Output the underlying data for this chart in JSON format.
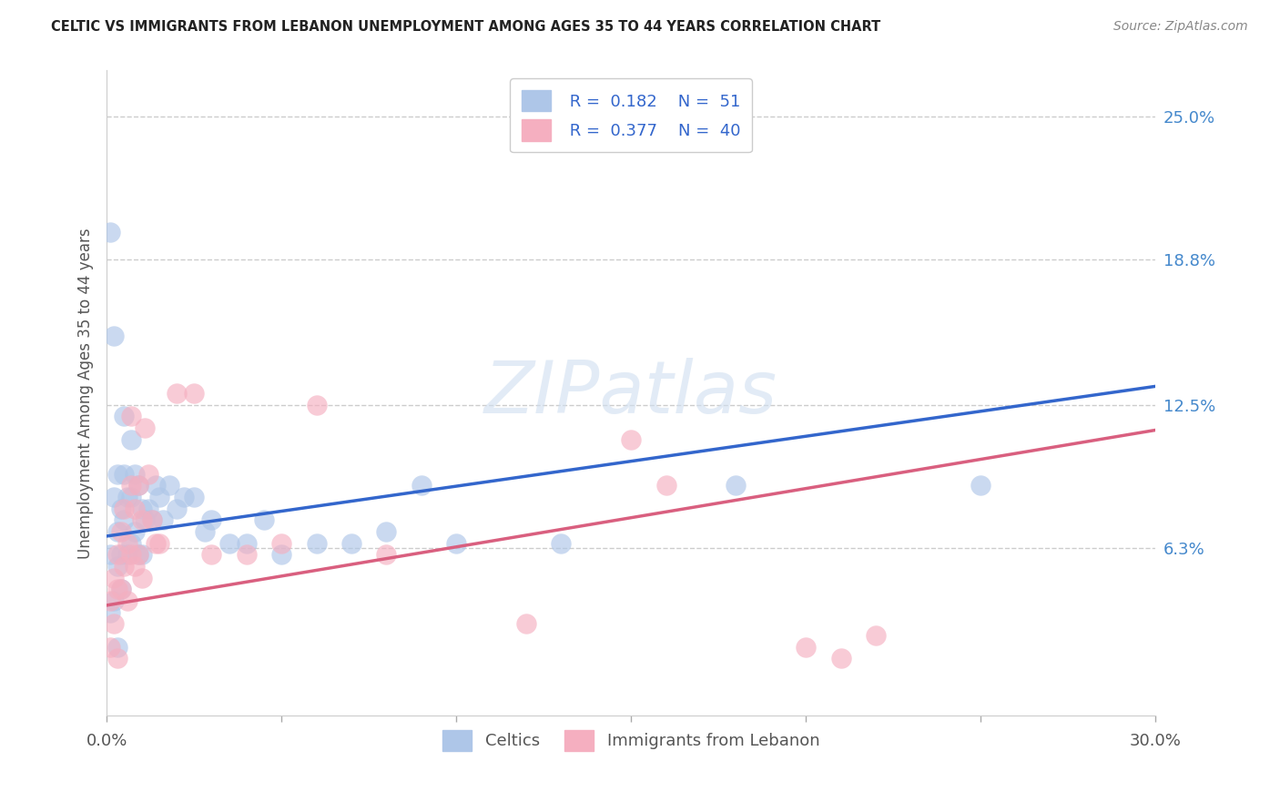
{
  "title": "CELTIC VS IMMIGRANTS FROM LEBANON UNEMPLOYMENT AMONG AGES 35 TO 44 YEARS CORRELATION CHART",
  "source": "Source: ZipAtlas.com",
  "ylabel": "Unemployment Among Ages 35 to 44 years",
  "xlim": [
    0.0,
    0.3
  ],
  "ylim": [
    -0.01,
    0.27
  ],
  "right_yticks": [
    0.063,
    0.125,
    0.188,
    0.25
  ],
  "right_yticklabels": [
    "6.3%",
    "12.5%",
    "18.8%",
    "25.0%"
  ],
  "legend_R_celtics": "0.182",
  "legend_N_celtics": "51",
  "legend_R_lebanon": "0.377",
  "legend_N_lebanon": "40",
  "celtics_color": "#aec6e8",
  "lebanon_color": "#f5afc0",
  "celtics_line_color": "#3366cc",
  "lebanon_line_color": "#d95f7f",
  "celtics_line_x0": 0.0,
  "celtics_line_y0": 0.068,
  "celtics_line_x1": 0.3,
  "celtics_line_y1": 0.133,
  "lebanon_line_x0": 0.0,
  "lebanon_line_y0": 0.038,
  "lebanon_line_x1": 0.3,
  "lebanon_line_y1": 0.114,
  "celtics_x": [
    0.001,
    0.001,
    0.001,
    0.002,
    0.002,
    0.002,
    0.003,
    0.003,
    0.003,
    0.003,
    0.004,
    0.004,
    0.004,
    0.005,
    0.005,
    0.005,
    0.006,
    0.006,
    0.007,
    0.007,
    0.007,
    0.008,
    0.008,
    0.009,
    0.009,
    0.01,
    0.01,
    0.011,
    0.012,
    0.013,
    0.014,
    0.015,
    0.016,
    0.018,
    0.02,
    0.022,
    0.025,
    0.028,
    0.03,
    0.035,
    0.04,
    0.045,
    0.05,
    0.06,
    0.07,
    0.08,
    0.09,
    0.1,
    0.13,
    0.18,
    0.25
  ],
  "celtics_y": [
    0.2,
    0.06,
    0.035,
    0.155,
    0.085,
    0.04,
    0.095,
    0.07,
    0.055,
    0.02,
    0.08,
    0.06,
    0.045,
    0.12,
    0.095,
    0.075,
    0.085,
    0.06,
    0.11,
    0.085,
    0.065,
    0.095,
    0.07,
    0.09,
    0.06,
    0.08,
    0.06,
    0.075,
    0.08,
    0.075,
    0.09,
    0.085,
    0.075,
    0.09,
    0.08,
    0.085,
    0.085,
    0.07,
    0.075,
    0.065,
    0.065,
    0.075,
    0.06,
    0.065,
    0.065,
    0.07,
    0.09,
    0.065,
    0.065,
    0.09,
    0.09
  ],
  "lebanon_x": [
    0.001,
    0.001,
    0.002,
    0.002,
    0.003,
    0.003,
    0.003,
    0.004,
    0.004,
    0.005,
    0.005,
    0.006,
    0.006,
    0.007,
    0.007,
    0.007,
    0.008,
    0.008,
    0.009,
    0.009,
    0.01,
    0.01,
    0.011,
    0.012,
    0.013,
    0.014,
    0.015,
    0.02,
    0.025,
    0.03,
    0.04,
    0.05,
    0.06,
    0.08,
    0.12,
    0.15,
    0.16,
    0.2,
    0.21,
    0.22
  ],
  "lebanon_y": [
    0.04,
    0.02,
    0.05,
    0.03,
    0.06,
    0.045,
    0.015,
    0.07,
    0.045,
    0.08,
    0.055,
    0.065,
    0.04,
    0.12,
    0.09,
    0.06,
    0.08,
    0.055,
    0.09,
    0.06,
    0.075,
    0.05,
    0.115,
    0.095,
    0.075,
    0.065,
    0.065,
    0.13,
    0.13,
    0.06,
    0.06,
    0.065,
    0.125,
    0.06,
    0.03,
    0.11,
    0.09,
    0.02,
    0.015,
    0.025
  ]
}
